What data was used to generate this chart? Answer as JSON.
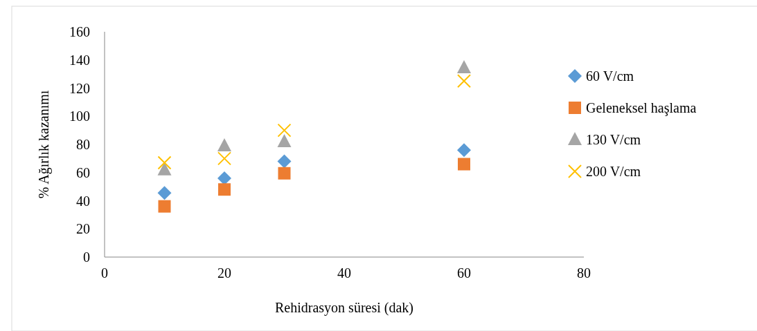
{
  "chart_data": {
    "type": "scatter",
    "xlabel": "Rehidrasyon süresi (dak)",
    "ylabel": "% Ağırlık kazanımı",
    "x": [
      10,
      20,
      30,
      60
    ],
    "xlim": [
      0,
      80
    ],
    "xticks": [
      0,
      20,
      40,
      60,
      80
    ],
    "ylim": [
      0,
      160
    ],
    "yticks": [
      0,
      20,
      40,
      60,
      80,
      100,
      120,
      140,
      160
    ],
    "grid": false,
    "legend": "right",
    "series": [
      {
        "name": "60 V/cm",
        "color": "#5b9bd5",
        "marker": "diamond",
        "values": [
          45.5,
          56,
          68,
          76
        ]
      },
      {
        "name": "Geleneksel haşlama",
        "color": "#ed7d31",
        "marker": "square",
        "values": [
          36,
          48,
          59.5,
          66
        ]
      },
      {
        "name": "130 V/cm",
        "color": "#a5a5a5",
        "marker": "triangle",
        "values": [
          62,
          79,
          82,
          134.5
        ]
      },
      {
        "name": "200 V/cm",
        "color": "#ffc000",
        "marker": "cross",
        "values": [
          67,
          70,
          90,
          125
        ]
      }
    ]
  }
}
